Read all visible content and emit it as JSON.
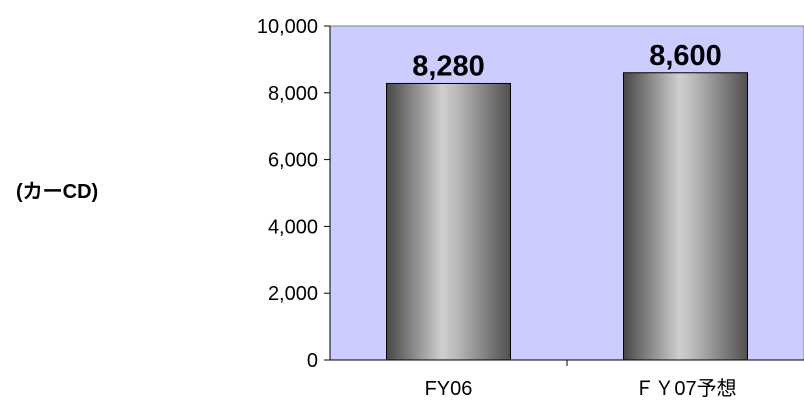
{
  "chart_data": {
    "type": "bar",
    "categories": [
      "FY06",
      "ＦＹ07予想"
    ],
    "values": [
      8280,
      8600
    ],
    "value_labels": [
      "8,280",
      "8,600"
    ],
    "ylabel": "(カーCD)",
    "ylim": [
      0,
      10000
    ],
    "yticks": [
      0,
      2000,
      4000,
      6000,
      8000,
      10000
    ],
    "ytick_labels": [
      "0",
      "2,000",
      "4,000",
      "6,000",
      "8,000",
      "10,000"
    ],
    "grid": false,
    "legend": "none",
    "colors": {
      "plot_background": "#CCCCFF",
      "bar_dark": "#4a4a4a",
      "bar_light": "#c8c8c8",
      "axis": "#000000"
    }
  }
}
